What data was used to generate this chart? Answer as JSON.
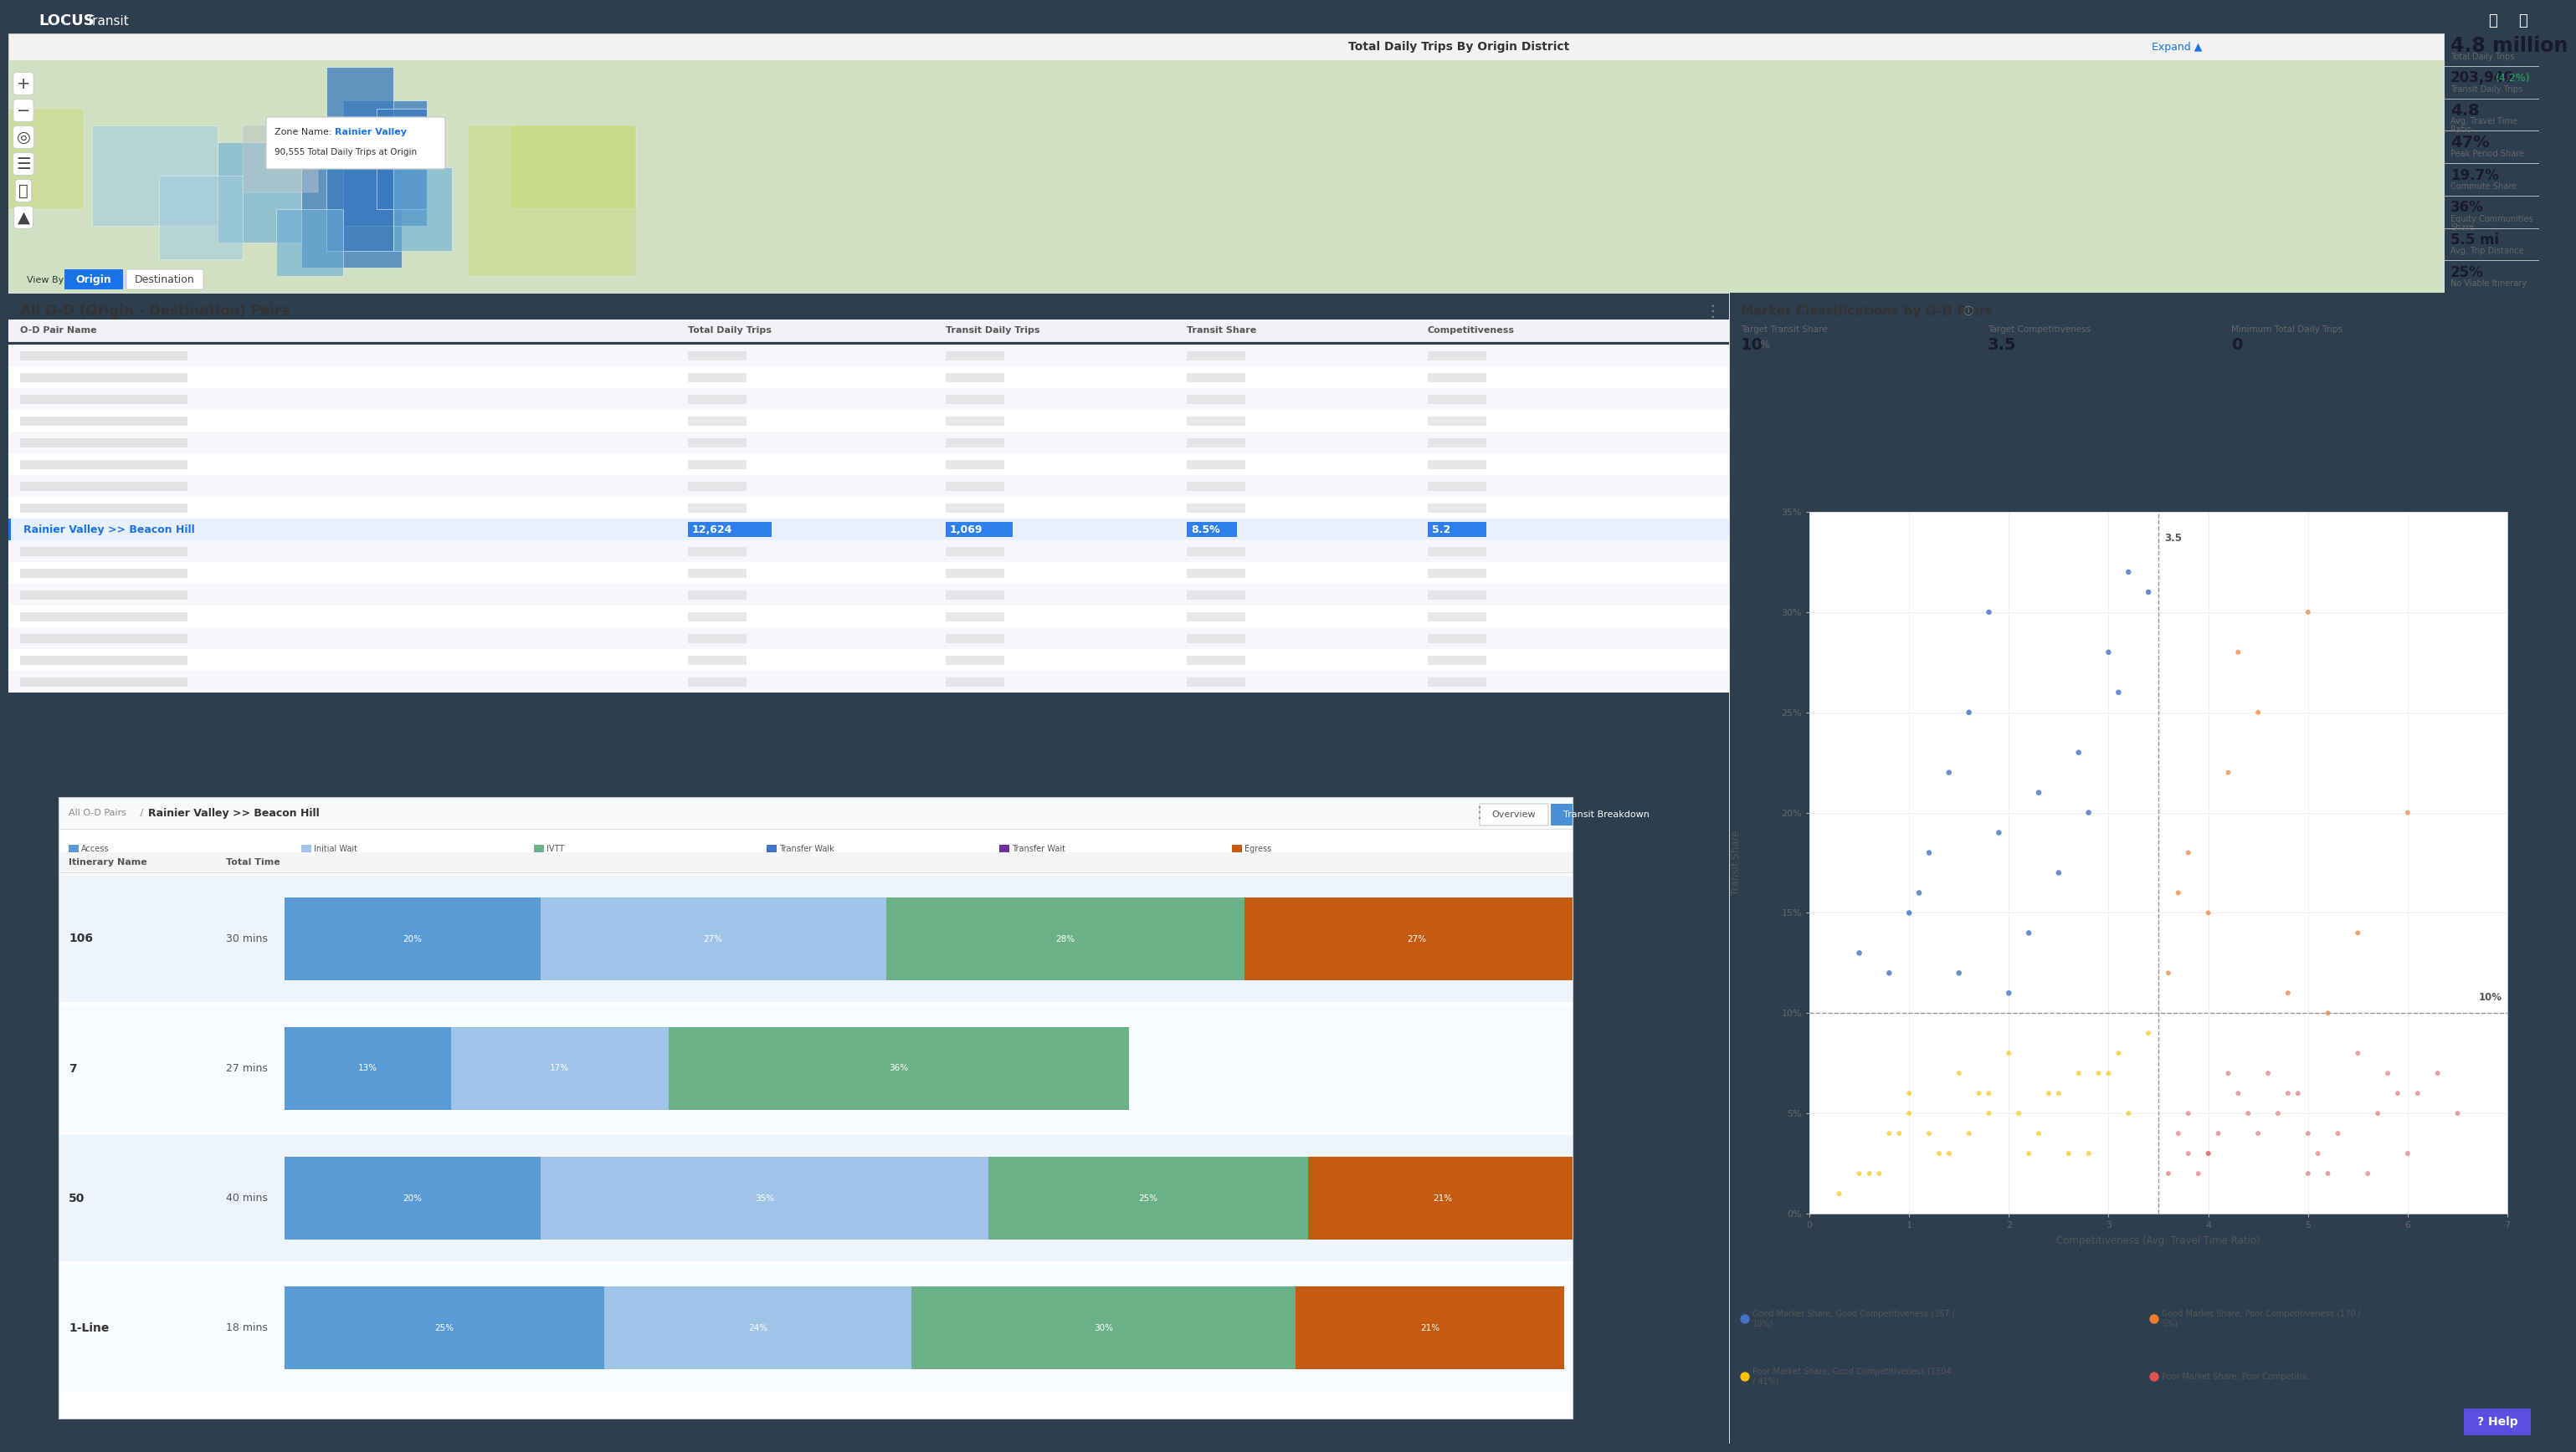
{
  "title": "LOCUS Transit",
  "stats_panel": {
    "total_daily_trips": "4.8 million",
    "total_daily_trips_label": "Total Daily Trips",
    "transit_daily_trips": "203,940",
    "transit_daily_trips_pct": "(4.2%)",
    "transit_daily_trips_label": "Transit Daily Trips",
    "avg_travel_time": "4.8",
    "avg_travel_time_label": "Avg. Travel Time\nRatio",
    "peak_period_share": "47%",
    "peak_period_share_label": "Peak Period Share",
    "commute_share": "19.7%",
    "commute_share_label": "Commute Share",
    "equity_communities": "36%",
    "equity_communities_label": "Equity Communities\nShare",
    "avg_trip_distance": "5.5 mi",
    "avg_trip_distance_label": "Avg. Trip Distance",
    "no_viable_itinerary": "25%",
    "no_viable_itinerary_label": "No Viable Itinerary"
  },
  "map_panel": {
    "title": "Total Daily Trips By Origin District",
    "expand_text": "Expand ▲",
    "tooltip_zone_label": "Zone Name: ",
    "tooltip_zone_value": "Rainier Valley",
    "tooltip_trips": "90,555 Total Daily Trips at Origin",
    "view_by_origin": "Origin",
    "view_by_destination": "Destination"
  },
  "od_table": {
    "title": "All O-D (Origin - Destination) Pairs",
    "selected_row": "Rainier Valley >> Beacon Hill",
    "selected_trips": "12,624",
    "selected_transit": "1,069",
    "selected_share": "8.5%",
    "selected_comp": "5.2",
    "columns": [
      "O-D Pair Name",
      "Total Daily Trips",
      "Transit Daily Trips",
      "Transit Share",
      "Competitiveness"
    ]
  },
  "transit_breakdown": {
    "title": "Rainier Valley >> Beacon Hill",
    "legend": [
      "Access",
      "Initial Wait",
      "IVTT",
      "Transfer Walk",
      "Transfer Wait",
      "Egress"
    ],
    "legend_colors": [
      "#5b9bd5",
      "#a0c4e8",
      "#6ab187",
      "#4472c4",
      "#7030a0",
      "#c55a11"
    ],
    "rows": [
      {
        "name": "106",
        "time": "30 mins",
        "bars": [
          20,
          27,
          28,
          0,
          0,
          27
        ]
      },
      {
        "name": "7",
        "time": "27 mins",
        "bars": [
          13,
          17,
          36,
          0,
          0,
          0
        ]
      },
      {
        "name": "50",
        "time": "40 mins",
        "bars": [
          20,
          35,
          25,
          0,
          0,
          21
        ]
      },
      {
        "name": "1-Line",
        "time": "18 mins",
        "bars": [
          25,
          24,
          30,
          0,
          0,
          21
        ]
      }
    ]
  },
  "scatter_panel": {
    "title": "Market Classifications by O-D Pairs",
    "x_label": "Competitiveness (Avg. Travel Time Ratio)",
    "y_label": "Transit Share",
    "target_transit_share_label": "Target Transit Share",
    "target_transit_share_val": "10",
    "target_transit_share_unit": "%",
    "target_competitiveness_label": "Target Competitiveness",
    "target_competitiveness_val": "3.5",
    "min_daily_trips_label": "Minimum Total Daily Trips",
    "min_daily_trips_val": "0",
    "x_range": [
      0,
      7
    ],
    "y_range": [
      0,
      35
    ],
    "x_ticks": [
      0,
      1,
      2,
      3,
      4,
      5,
      6,
      7
    ],
    "y_ticks": [
      0,
      5,
      10,
      15,
      20,
      25,
      30,
      35
    ],
    "vline_x": 3.5,
    "hline_y": 10,
    "vline_label": "3.5",
    "hline_label": "10%",
    "quadrant_colors": {
      "good_good": "#4472c4",
      "good_poor": "#ed7d31",
      "poor_good": "#ffc000",
      "poor_poor": "#e05050"
    },
    "legend": [
      {
        "label": "Good Market Share, Good Competitiveness (367 /\n10%)",
        "color": "#4472c4"
      },
      {
        "label": "Good Market Share, Poor Competitiveness (170 /\n5%)",
        "color": "#ed7d31"
      },
      {
        "label": "Poor Market Share, Good Competitiveness (1504\n/ 41%)",
        "color": "#ffc000"
      },
      {
        "label": "Poor Market Share, Poor Competitiv...",
        "color": "#e05050"
      }
    ],
    "scatter_good_good_x": [
      0.8,
      1.0,
      1.2,
      1.4,
      1.6,
      1.8,
      2.0,
      2.2,
      2.5,
      2.8,
      3.0,
      3.2,
      0.5,
      1.1,
      1.9,
      2.7,
      3.1,
      3.4,
      1.5,
      2.3
    ],
    "scatter_good_good_y": [
      12,
      15,
      18,
      22,
      25,
      30,
      11,
      14,
      17,
      20,
      28,
      32,
      13,
      16,
      19,
      23,
      26,
      31,
      12,
      21
    ],
    "scatter_good_poor_x": [
      3.6,
      3.8,
      4.0,
      4.2,
      4.5,
      4.8,
      5.0,
      5.5,
      6.0,
      3.7,
      4.3,
      5.2
    ],
    "scatter_good_poor_y": [
      12,
      18,
      15,
      22,
      25,
      11,
      30,
      14,
      20,
      16,
      28,
      10
    ],
    "scatter_poor_good_x": [
      0.5,
      0.8,
      1.0,
      1.3,
      1.5,
      1.8,
      2.0,
      2.3,
      2.5,
      2.8,
      3.0,
      3.2,
      3.4,
      0.7,
      1.2,
      1.7,
      2.2,
      2.7,
      0.3,
      1.0,
      1.6,
      2.4,
      3.1,
      0.6,
      1.4,
      2.1,
      2.9,
      0.9,
      1.8,
      2.6
    ],
    "scatter_poor_good_y": [
      2,
      4,
      6,
      3,
      7,
      5,
      8,
      4,
      6,
      3,
      7,
      5,
      9,
      2,
      4,
      6,
      3,
      7,
      1,
      5,
      4,
      6,
      8,
      2,
      3,
      5,
      7,
      4,
      6,
      3
    ],
    "scatter_poor_poor_x": [
      3.6,
      3.8,
      4.0,
      4.2,
      4.5,
      4.8,
      5.0,
      5.5,
      6.0,
      6.5,
      3.7,
      4.3,
      5.2,
      5.8,
      4.0,
      4.7,
      5.3,
      6.1,
      3.9,
      4.6,
      5.1,
      5.7,
      4.1,
      4.9,
      5.6,
      6.3,
      3.8,
      4.4,
      5.0,
      5.9
    ],
    "scatter_poor_poor_y": [
      2,
      5,
      3,
      7,
      4,
      6,
      2,
      8,
      3,
      5,
      4,
      6,
      2,
      7,
      3,
      5,
      4,
      6,
      2,
      7,
      3,
      5,
      4,
      6,
      2,
      7,
      3,
      5,
      4,
      6
    ]
  },
  "colors": {
    "header_bg": "#2d3e4e",
    "header_text": "#ffffff",
    "panel_bg": "#ffffff",
    "stats_bg": "#ffffff",
    "map_bg": "#d4e4c8",
    "accent_blue": "#1a73e8",
    "tab_active_bg": "#4a90d9",
    "text_dark": "#333333",
    "text_medium": "#666666",
    "text_light": "#999999",
    "border_color": "#dddddd",
    "row_alt": "#f5f7fa",
    "selected_row_bg": "#e8f0fe",
    "stat_green": "#27ae60",
    "stat_value": "#1a1a2e"
  }
}
